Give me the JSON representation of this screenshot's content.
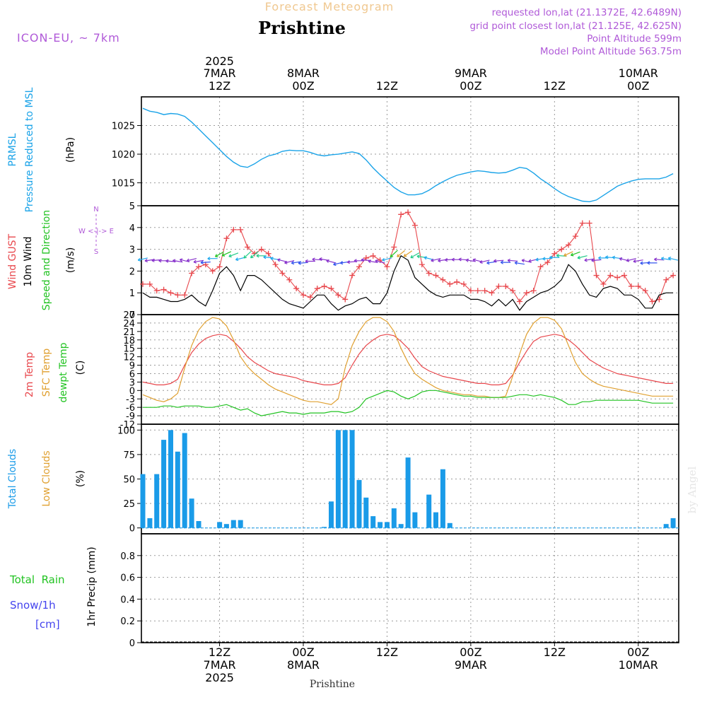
{
  "header": {
    "top_title": "Forecast Meteogram",
    "location": "Prishtine",
    "model": "ICON-EU, ~ 7km",
    "requested": "requested lon,lat (21.1372E, 42.6489N)",
    "grid_point": "grid point closest lon,lat (21.125E, 42.625N)",
    "point_altitude": "Point Altitude 599m",
    "model_altitude": "Model Point Altitude 563.75m",
    "footer_location": "Prishtine",
    "credit": "by Angel"
  },
  "colors": {
    "pressure": "#1aa3e8",
    "gust": "#e8474c",
    "wind10m": "#000000",
    "speed_dir": "#22c322",
    "temp2m": "#e8474c",
    "sfc_temp": "#e0a030",
    "dewpt": "#22c322",
    "clouds_total": "#1a9be8",
    "clouds_low": "#e0a030",
    "rain_label": "#22c322",
    "snow_label": "#4444ee",
    "header_purple": "#b05ad8",
    "title_orange": "#f0c890"
  },
  "chart_data": [
    {
      "type": "line",
      "panel": "pressure",
      "ylabel_lines": [
        "PRMSL",
        "Pressure Reduced to MSL",
        "(hPa)"
      ],
      "yticks": [
        1015,
        1020,
        1025
      ],
      "ylim": [
        1011,
        1030
      ],
      "x_hours": [
        0,
        1,
        2,
        3,
        4,
        5,
        6,
        7,
        8,
        9,
        10,
        11,
        12,
        13,
        14,
        15,
        16,
        17,
        18,
        19,
        20,
        21,
        22,
        23,
        24,
        25,
        26,
        27,
        28,
        29,
        30,
        31,
        32,
        33,
        34,
        35,
        36,
        37,
        38,
        39,
        40,
        41,
        42,
        43,
        44,
        45,
        46,
        47,
        48,
        49,
        50,
        51,
        52,
        53,
        54,
        55,
        56,
        57,
        58,
        59,
        60,
        61,
        62,
        63,
        64,
        65,
        66,
        67,
        68,
        69,
        70,
        71,
        72,
        73,
        74,
        75,
        76
      ],
      "series": [
        {
          "values": [
            1028.0,
            1027.5,
            1027.3,
            1026.9,
            1027.1,
            1027.0,
            1026.6,
            1025.6,
            1024.4,
            1023.2,
            1022.0,
            1020.8,
            1019.6,
            1018.6,
            1017.9,
            1017.7,
            1018.3,
            1019.1,
            1019.7,
            1020.0,
            1020.5,
            1020.7,
            1020.6,
            1020.6,
            1020.3,
            1019.9,
            1019.7,
            1019.9,
            1020.0,
            1020.2,
            1020.4,
            1020.1,
            1019.0,
            1017.6,
            1016.4,
            1015.3,
            1014.2,
            1013.4,
            1012.9,
            1012.9,
            1013.1,
            1013.7,
            1014.5,
            1015.2,
            1015.8,
            1016.3,
            1016.6,
            1016.9,
            1017.1,
            1017.0,
            1016.8,
            1016.7,
            1016.8,
            1017.2,
            1017.7,
            1017.5,
            1016.7,
            1015.7,
            1014.9,
            1014.0,
            1013.2,
            1012.6,
            1012.2,
            1011.8,
            1011.7,
            1012.0,
            1012.8,
            1013.6,
            1014.4,
            1014.9,
            1015.3,
            1015.6,
            1015.7,
            1015.7,
            1015.7,
            1016.0,
            1016.6
          ]
        }
      ]
    },
    {
      "type": "line",
      "panel": "wind",
      "ylabel_lines": [
        "Wind GUST",
        "10m Wind",
        "Speed and Direction",
        "(m/s)"
      ],
      "compass": [
        "N",
        "W <-|-> E",
        "S"
      ],
      "yticks": [
        0,
        1,
        2,
        3,
        4,
        5
      ],
      "ylim": [
        0,
        5
      ],
      "x_hours": [
        0,
        1,
        2,
        3,
        4,
        5,
        6,
        7,
        8,
        9,
        10,
        11,
        12,
        13,
        14,
        15,
        16,
        17,
        18,
        19,
        20,
        21,
        22,
        23,
        24,
        25,
        26,
        27,
        28,
        29,
        30,
        31,
        32,
        33,
        34,
        35,
        36,
        37,
        38,
        39,
        40,
        41,
        42,
        43,
        44,
        45,
        46,
        47,
        48,
        49,
        50,
        51,
        52,
        53,
        54,
        55,
        56,
        57,
        58,
        59,
        60,
        61,
        62,
        63,
        64,
        65,
        66,
        67,
        68,
        69,
        70,
        71,
        72,
        73,
        74,
        75,
        76
      ],
      "series": [
        {
          "name": "Wind GUST",
          "values": [
            1.4,
            1.4,
            1.1,
            1.15,
            1.0,
            0.9,
            0.9,
            1.9,
            2.2,
            2.3,
            2.0,
            2.2,
            3.5,
            3.9,
            3.9,
            3.1,
            2.8,
            3.0,
            2.8,
            2.3,
            1.9,
            1.6,
            1.2,
            0.9,
            0.8,
            1.2,
            1.3,
            1.2,
            0.9,
            0.7,
            1.8,
            2.2,
            2.6,
            2.7,
            2.5,
            2.2,
            3.1,
            4.6,
            4.7,
            4.1,
            2.3,
            1.9,
            1.8,
            1.6,
            1.4,
            1.5,
            1.4,
            1.1,
            1.1,
            1.1,
            1.0,
            1.3,
            1.3,
            1.1,
            0.6,
            1.0,
            1.1,
            2.2,
            2.4,
            2.8,
            3.0,
            3.2,
            3.6,
            4.2,
            4.2,
            1.8,
            1.4,
            1.8,
            1.7,
            1.8,
            1.3,
            1.3,
            1.1,
            0.6,
            0.7,
            1.6,
            1.8
          ]
        },
        {
          "name": "10m Wind",
          "values": [
            1.0,
            0.8,
            0.8,
            0.7,
            0.6,
            0.6,
            0.7,
            0.9,
            0.6,
            0.4,
            1.1,
            1.9,
            2.2,
            1.8,
            1.1,
            1.8,
            1.8,
            1.6,
            1.3,
            1.0,
            0.7,
            0.5,
            0.4,
            0.3,
            0.6,
            0.9,
            0.9,
            0.5,
            0.2,
            0.4,
            0.5,
            0.7,
            0.8,
            0.5,
            0.5,
            1.0,
            2.0,
            2.7,
            2.5,
            1.7,
            1.4,
            1.1,
            0.9,
            0.8,
            0.9,
            0.9,
            0.9,
            0.7,
            0.7,
            0.6,
            0.4,
            0.7,
            0.4,
            0.7,
            0.2,
            0.6,
            0.8,
            1.0,
            1.1,
            1.3,
            1.6,
            2.3,
            2.0,
            1.4,
            0.9,
            0.8,
            1.2,
            1.3,
            1.2,
            0.9,
            0.9,
            0.7,
            0.3,
            0.3,
            0.9,
            1.0,
            1.0
          ]
        }
      ]
    },
    {
      "type": "line",
      "panel": "temperature",
      "ylabel_lines": [
        "2m Temp",
        "SFC Temp",
        "dewpt Temp",
        "(C)"
      ],
      "yticks": [
        -12,
        -9,
        -6,
        -3,
        0,
        3,
        6,
        9,
        12,
        15,
        18,
        21,
        24,
        27
      ],
      "ylim": [
        -12,
        27
      ],
      "x_hours": [
        0,
        1,
        2,
        3,
        4,
        5,
        6,
        7,
        8,
        9,
        10,
        11,
        12,
        13,
        14,
        15,
        16,
        17,
        18,
        19,
        20,
        21,
        22,
        23,
        24,
        25,
        26,
        27,
        28,
        29,
        30,
        31,
        32,
        33,
        34,
        35,
        36,
        37,
        38,
        39,
        40,
        41,
        42,
        43,
        44,
        45,
        46,
        47,
        48,
        49,
        50,
        51,
        52,
        53,
        54,
        55,
        56,
        57,
        58,
        59,
        60,
        61,
        62,
        63,
        64,
        65,
        66,
        67,
        68,
        69,
        70,
        71,
        72,
        73,
        74,
        75,
        76
      ],
      "series": [
        {
          "name": "2m Temp",
          "values": [
            3,
            2.5,
            2,
            2,
            2.5,
            4,
            9,
            13.5,
            16.5,
            18.5,
            19.5,
            20,
            19.5,
            17.5,
            15,
            12,
            10,
            8.5,
            7,
            6,
            5.5,
            5,
            4.5,
            3.5,
            3,
            2.5,
            2,
            2,
            2.5,
            4.5,
            9,
            13,
            16,
            18,
            19.5,
            20,
            19.5,
            17.5,
            15,
            11.5,
            8.5,
            7,
            6,
            5,
            4.5,
            4,
            3.5,
            3,
            2.5,
            2.5,
            2,
            2,
            2.5,
            5.5,
            10,
            14,
            17.5,
            19,
            19.5,
            20,
            19.5,
            18,
            16,
            13.5,
            11,
            9.5,
            8,
            7,
            6,
            5.5,
            5,
            4.5,
            4,
            3.5,
            3,
            2.5,
            2.5
          ]
        },
        {
          "name": "SFC Temp",
          "values": [
            -1.5,
            -2.5,
            -3.5,
            -4,
            -3,
            -1,
            8,
            16,
            21.5,
            24.5,
            26,
            25.5,
            23,
            18,
            12,
            8.5,
            6,
            4,
            2,
            0.5,
            -0.5,
            -1.5,
            -2.5,
            -3.5,
            -4,
            -4,
            -4.5,
            -5,
            -3,
            8,
            16,
            21,
            24.5,
            26,
            26,
            24.5,
            21,
            15,
            10,
            6,
            4,
            2.5,
            1,
            0,
            -0.5,
            -1,
            -1.5,
            -1.5,
            -2,
            -2,
            -2.5,
            -2.5,
            -2,
            5,
            13,
            20,
            24,
            26,
            26,
            25,
            22,
            16,
            10,
            6,
            4,
            2.5,
            1.5,
            1,
            0.5,
            0,
            -0.5,
            -1,
            -1.5,
            -2,
            -2,
            -2,
            -2
          ]
        },
        {
          "name": "dewpt Temp",
          "values": [
            -6,
            -6,
            -6,
            -5.5,
            -5.5,
            -6,
            -5.5,
            -5.5,
            -5.5,
            -6,
            -6,
            -5.5,
            -5,
            -6,
            -7,
            -6.5,
            -8,
            -9,
            -8.5,
            -8,
            -7.5,
            -8,
            -8,
            -8.5,
            -8,
            -8,
            -8,
            -7.5,
            -7.5,
            -8,
            -7.5,
            -6,
            -3,
            -2,
            -1,
            0,
            -0.5,
            -2,
            -3,
            -2,
            -0.5,
            0,
            0,
            -0.5,
            -1,
            -1.5,
            -2,
            -2,
            -2.5,
            -2.5,
            -2.5,
            -2.5,
            -2.5,
            -2,
            -1.5,
            -1.5,
            -2,
            -1.5,
            -2,
            -2.5,
            -3.5,
            -5,
            -5,
            -4,
            -4,
            -3.5,
            -3.5,
            -3.5,
            -3.5,
            -3.5,
            -3.5,
            -3.5,
            -4,
            -4.5,
            -4.5,
            -4.5,
            -4.5
          ]
        }
      ]
    },
    {
      "type": "bar",
      "panel": "clouds",
      "ylabel_lines": [
        "Total Clouds",
        "Low Clouds",
        "(%)"
      ],
      "yticks": [
        0,
        25,
        50,
        75,
        100
      ],
      "ylim": [
        -6,
        106
      ],
      "x_hours": [
        0,
        1,
        2,
        3,
        4,
        5,
        6,
        7,
        8,
        9,
        10,
        11,
        12,
        13,
        14,
        15,
        16,
        17,
        18,
        19,
        20,
        21,
        22,
        23,
        24,
        25,
        26,
        27,
        28,
        29,
        30,
        31,
        32,
        33,
        34,
        35,
        36,
        37,
        38,
        39,
        40,
        41,
        42,
        43,
        44,
        45,
        46,
        47,
        48,
        49,
        50,
        51,
        52,
        53,
        54,
        55,
        56,
        57,
        58,
        59,
        60,
        61,
        62,
        63,
        64,
        65,
        66,
        67,
        68,
        69,
        70,
        71,
        72,
        73,
        74,
        75,
        76
      ],
      "series": [
        {
          "name": "Total Clouds",
          "values": [
            55,
            10,
            55,
            90,
            100,
            78,
            97,
            30,
            7,
            0,
            0,
            6,
            4,
            8,
            8,
            0,
            0,
            0,
            0,
            0,
            0,
            0,
            0,
            0,
            0,
            0,
            1,
            27,
            100,
            100,
            100,
            49,
            31,
            12,
            6,
            6,
            20,
            4,
            72,
            16,
            0,
            34,
            16,
            60,
            5,
            0,
            0,
            0,
            0,
            0,
            0,
            0,
            0,
            0,
            0,
            0,
            0,
            0,
            0,
            0,
            0,
            0,
            0,
            0,
            0,
            0,
            0,
            0,
            0,
            0,
            0,
            0,
            0,
            0,
            0,
            4,
            10
          ]
        }
      ]
    },
    {
      "type": "bar",
      "panel": "precip",
      "ylabel_lines": [
        "1hr Precip (mm)"
      ],
      "legend_lines": [
        "Total  Rain",
        "Snow/1h",
        "[cm]"
      ],
      "yticks": [
        "0",
        "0.2",
        "0.4",
        "0.6",
        "0.8"
      ],
      "ylim": [
        0,
        1
      ],
      "series": [
        {
          "name": "Total Rain",
          "values": [
            0,
            0,
            0,
            0,
            0,
            0,
            0,
            0,
            0,
            0,
            0,
            0,
            0,
            0,
            0,
            0,
            0,
            0,
            0,
            0,
            0,
            0,
            0,
            0,
            0,
            0,
            0,
            0,
            0,
            0,
            0,
            0,
            0,
            0,
            0,
            0,
            0,
            0,
            0,
            0,
            0,
            0,
            0,
            0,
            0,
            0,
            0,
            0,
            0,
            0,
            0,
            0,
            0,
            0,
            0,
            0,
            0,
            0,
            0,
            0,
            0,
            0,
            0,
            0,
            0,
            0,
            0,
            0,
            0,
            0,
            0,
            0,
            0,
            0,
            0,
            0,
            0
          ]
        }
      ]
    }
  ],
  "time_axis": {
    "top_year": "2025",
    "top_labels": [
      {
        "hour": 11,
        "lines": [
          "7MAR",
          "12Z"
        ]
      },
      {
        "hour": 23,
        "lines": [
          "8MAR",
          "00Z"
        ]
      },
      {
        "hour": 35,
        "lines": [
          "12Z"
        ]
      },
      {
        "hour": 47,
        "lines": [
          "9MAR",
          "00Z"
        ]
      },
      {
        "hour": 59,
        "lines": [
          "12Z"
        ]
      },
      {
        "hour": 71,
        "lines": [
          "10MAR",
          "00Z"
        ]
      }
    ],
    "bottom_labels": [
      {
        "hour": 11,
        "lines": [
          "12Z",
          "7MAR",
          "2025"
        ]
      },
      {
        "hour": 23,
        "lines": [
          "00Z",
          "8MAR"
        ]
      },
      {
        "hour": 35,
        "lines": [
          "12Z"
        ]
      },
      {
        "hour": 47,
        "lines": [
          "00Z",
          "9MAR"
        ]
      },
      {
        "hour": 59,
        "lines": [
          "12Z"
        ]
      },
      {
        "hour": 71,
        "lines": [
          "00Z",
          "10MAR"
        ]
      }
    ]
  }
}
